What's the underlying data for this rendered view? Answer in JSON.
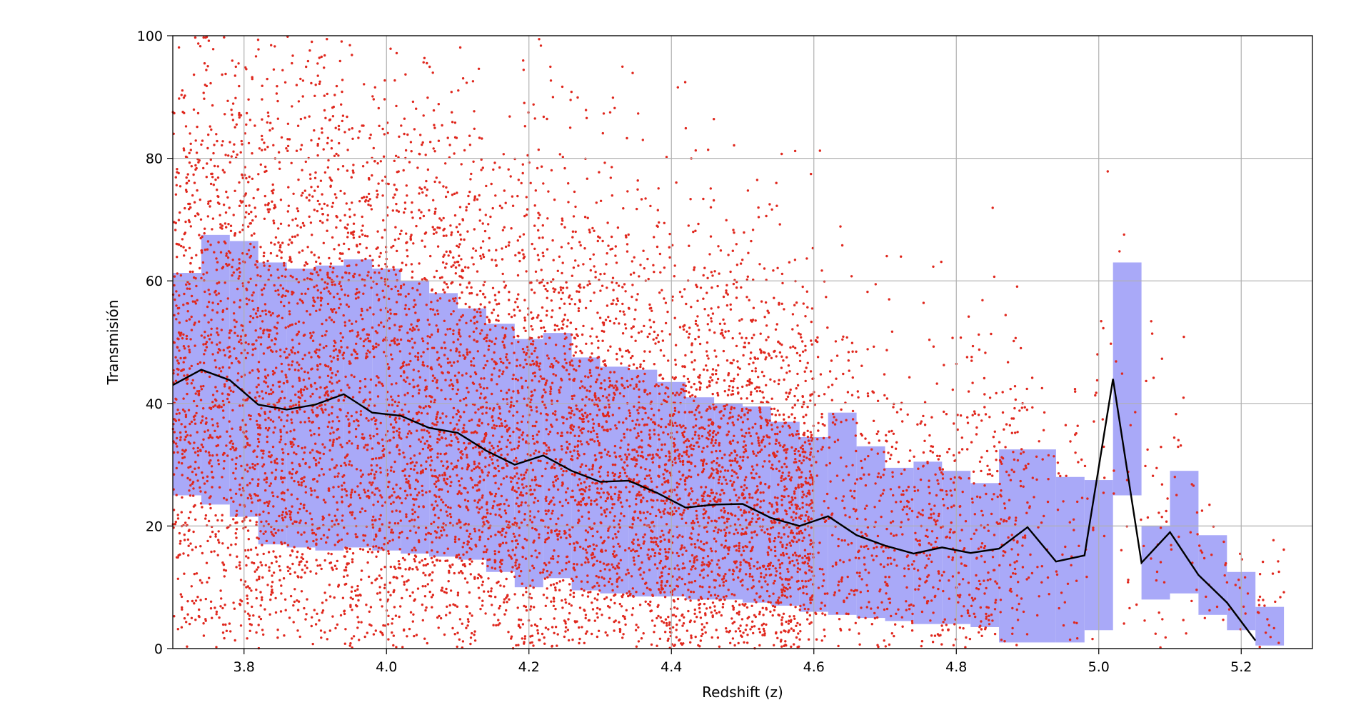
{
  "chart_data": {
    "type": "scatter",
    "title": "",
    "xlabel": "Redshift (z)",
    "ylabel": "Transmisión",
    "xlim": [
      3.7,
      5.3
    ],
    "ylim": [
      0,
      100
    ],
    "x_ticks": [
      "3.8",
      "4.0",
      "4.2",
      "4.4",
      "4.6",
      "4.8",
      "5.0",
      "5.2"
    ],
    "y_ticks": [
      "0",
      "20",
      "40",
      "60",
      "80",
      "100"
    ],
    "grid": true,
    "colors": {
      "scatter": "#e0281e",
      "band": "#a9a9f8",
      "mean_line": "#000000"
    },
    "scatter_description": "dense cloud of individual measurements (~tens of thousands of points) spanning z 3.7-5.26, transmission 0-100",
    "bins": {
      "z_edges": [
        3.7,
        3.74,
        3.78,
        3.82,
        3.86,
        3.9,
        3.94,
        3.98,
        4.02,
        4.06,
        4.1,
        4.14,
        4.18,
        4.22,
        4.26,
        4.3,
        4.34,
        4.38,
        4.42,
        4.46,
        4.5,
        4.54,
        4.58,
        4.62,
        4.66,
        4.7,
        4.74,
        4.78,
        4.82,
        4.86,
        4.9,
        4.94,
        4.98,
        5.02,
        5.06,
        5.1,
        5.14,
        5.18,
        5.22,
        5.26
      ],
      "band_upper": [
        61.3,
        67.5,
        66.5,
        63.0,
        62.0,
        62.5,
        63.5,
        62.0,
        60.0,
        58.0,
        55.5,
        53.0,
        50.5,
        51.5,
        47.5,
        46.0,
        45.5,
        43.5,
        41.0,
        40.0,
        39.5,
        37.0,
        34.5,
        38.5,
        33.0,
        29.5,
        30.5,
        29.0,
        27.0,
        32.5,
        32.5,
        28.0,
        27.5,
        63.0,
        20.0,
        29.0,
        18.5,
        12.5,
        6.8
      ],
      "band_lower": [
        25.0,
        23.5,
        21.5,
        17.0,
        16.5,
        16.0,
        16.5,
        16.0,
        15.5,
        15.0,
        14.5,
        12.5,
        10.0,
        11.5,
        9.5,
        9.0,
        8.5,
        8.5,
        8.0,
        8.0,
        7.5,
        7.0,
        6.0,
        5.5,
        5.0,
        4.5,
        4.0,
        4.0,
        3.5,
        1.0,
        1.0,
        1.0,
        3.0,
        25.0,
        8.0,
        9.0,
        5.5,
        3.0,
        0.5
      ]
    },
    "mean_line": {
      "x": [
        3.7,
        3.74,
        3.78,
        3.82,
        3.86,
        3.9,
        3.94,
        3.98,
        4.02,
        4.06,
        4.1,
        4.14,
        4.18,
        4.22,
        4.26,
        4.3,
        4.34,
        4.38,
        4.42,
        4.46,
        4.5,
        4.54,
        4.58,
        4.62,
        4.66,
        4.7,
        4.74,
        4.78,
        4.82,
        4.86,
        4.9,
        4.94,
        4.98,
        5.02,
        5.06,
        5.1,
        5.14,
        5.18,
        5.22
      ],
      "y": [
        43.0,
        45.5,
        43.8,
        39.8,
        39.0,
        39.8,
        41.5,
        38.5,
        38.0,
        36.0,
        35.2,
        32.3,
        30.0,
        31.5,
        29.0,
        27.2,
        27.4,
        25.4,
        23.0,
        23.5,
        23.6,
        21.3,
        20.0,
        21.6,
        18.5,
        16.8,
        15.5,
        16.5,
        15.6,
        16.3,
        19.8,
        14.2,
        15.2,
        44.0,
        14.0,
        19.0,
        12.0,
        7.5,
        1.3
      ]
    }
  }
}
